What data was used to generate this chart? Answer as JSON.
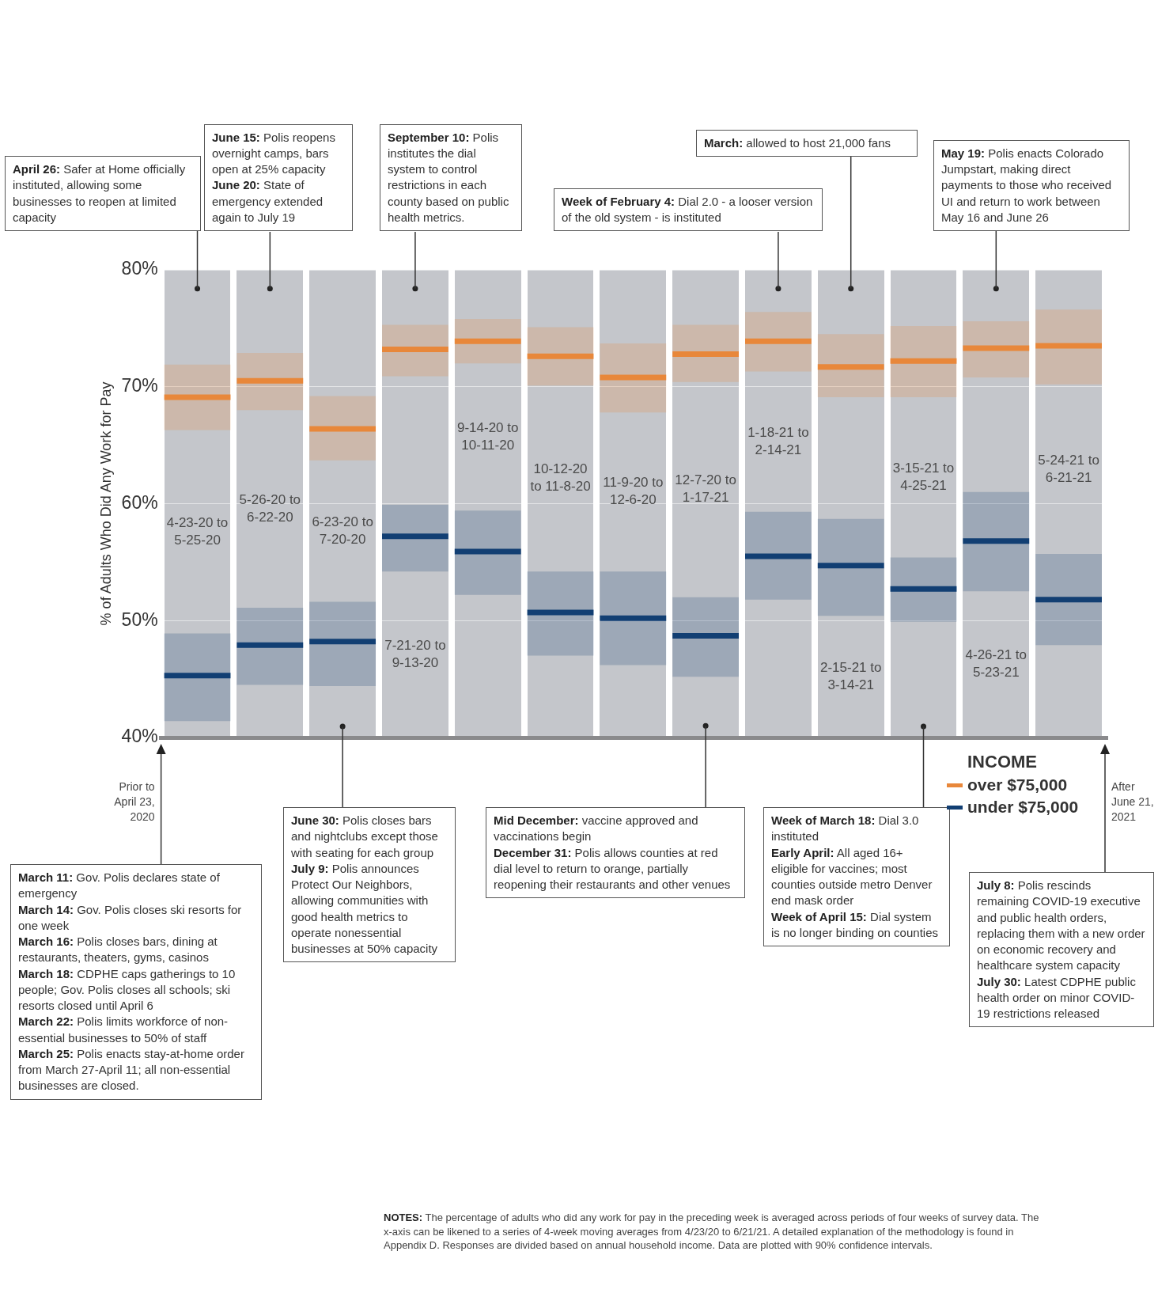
{
  "chart_data": {
    "type": "box",
    "ylabel": "% of Adults Who Did Any Work for Pay",
    "legend_title": "INCOME",
    "legend": "bottom right",
    "grid": true,
    "categories": [
      "4-23-20 to 5-25-20",
      "5-26-20 to 6-22-20",
      "6-23-20 to 7-20-20",
      "7-21-20 to 9-13-20",
      "9-14-20 to 10-11-20",
      "10-12-20 to 11-8-20",
      "11-9-20 to 12-6-20",
      "12-7-20 to 1-17-21",
      "1-18-21 to 2-14-21",
      "2-15-21 to 3-14-21",
      "3-15-21 to 4-25-21",
      "4-26-21 to 5-23-21",
      "5-24-21 to 6-21-21"
    ],
    "ylim": [
      40,
      80
    ],
    "yticks": [
      {
        "value": 40,
        "label": "40%"
      },
      {
        "value": 50,
        "label": "50%"
      },
      {
        "value": 60,
        "label": "60%"
      },
      {
        "value": 70,
        "label": "70%"
      },
      {
        "value": 80,
        "label": "80%"
      }
    ],
    "series": [
      {
        "name": "over $75,000",
        "color": "#e8873a",
        "boxes": [
          {
            "low": 66.3,
            "q1": 66.3,
            "median": 69.1,
            "q3": 71.9,
            "high": 71.9
          },
          {
            "low": 68.0,
            "q1": 68.0,
            "median": 70.5,
            "q3": 72.9,
            "high": 72.9
          },
          {
            "low": 63.7,
            "q1": 63.7,
            "median": 66.4,
            "q3": 69.2,
            "high": 69.2
          },
          {
            "low": 70.9,
            "q1": 70.9,
            "median": 73.2,
            "q3": 75.3,
            "high": 75.3
          },
          {
            "low": 72.0,
            "q1": 72.0,
            "median": 73.9,
            "q3": 75.8,
            "high": 75.8
          },
          {
            "low": 70.1,
            "q1": 70.1,
            "median": 72.6,
            "q3": 75.1,
            "high": 75.1
          },
          {
            "low": 67.8,
            "q1": 67.8,
            "median": 70.8,
            "q3": 73.7,
            "high": 73.7
          },
          {
            "low": 70.4,
            "q1": 70.4,
            "median": 72.8,
            "q3": 75.3,
            "high": 75.3
          },
          {
            "low": 71.3,
            "q1": 71.3,
            "median": 73.9,
            "q3": 76.4,
            "high": 76.4
          },
          {
            "low": 69.1,
            "q1": 69.1,
            "median": 71.7,
            "q3": 74.5,
            "high": 74.5
          },
          {
            "low": 69.1,
            "q1": 69.1,
            "median": 72.2,
            "q3": 75.2,
            "high": 75.2
          },
          {
            "low": 70.8,
            "q1": 70.8,
            "median": 73.3,
            "q3": 75.6,
            "high": 75.6
          },
          {
            "low": 70.2,
            "q1": 70.2,
            "median": 73.5,
            "q3": 76.6,
            "high": 76.6
          }
        ]
      },
      {
        "name": "under $75,000",
        "color": "#123f73",
        "boxes": [
          {
            "low": 41.4,
            "q1": 41.4,
            "median": 45.3,
            "q3": 48.9,
            "high": 48.9
          },
          {
            "low": 44.5,
            "q1": 44.5,
            "median": 47.9,
            "q3": 51.1,
            "high": 51.1
          },
          {
            "low": 44.4,
            "q1": 44.4,
            "median": 48.2,
            "q3": 51.6,
            "high": 51.6
          },
          {
            "low": 54.2,
            "q1": 54.2,
            "median": 57.2,
            "q3": 59.9,
            "high": 59.9
          },
          {
            "low": 52.2,
            "q1": 52.2,
            "median": 55.9,
            "q3": 59.4,
            "high": 59.4
          },
          {
            "low": 47.0,
            "q1": 47.0,
            "median": 50.7,
            "q3": 54.2,
            "high": 54.2
          },
          {
            "low": 46.2,
            "q1": 46.2,
            "median": 50.2,
            "q3": 54.2,
            "high": 54.2
          },
          {
            "low": 45.2,
            "q1": 45.2,
            "median": 48.7,
            "q3": 52.0,
            "high": 52.0
          },
          {
            "low": 51.8,
            "q1": 51.8,
            "median": 55.5,
            "q3": 59.3,
            "high": 59.3
          },
          {
            "low": 50.4,
            "q1": 50.4,
            "median": 54.7,
            "q3": 58.7,
            "high": 58.7
          },
          {
            "low": 49.9,
            "q1": 49.9,
            "median": 52.7,
            "q3": 55.4,
            "high": 55.4
          },
          {
            "low": 52.5,
            "q1": 52.5,
            "median": 56.8,
            "q3": 61.0,
            "high": 61.0
          },
          {
            "low": 47.9,
            "q1": 47.9,
            "median": 51.8,
            "q3": 55.7,
            "high": 55.7
          }
        ]
      }
    ],
    "annotations": [
      {
        "text": "April 26: Safer at Home officially instituted, allowing some businesses to reopen at limited capacity",
        "x": "4-23-20 to 5-25-20",
        "y": 78.4
      },
      {
        "text": "June 15: Polis reopens overnight camps, bars open at 25% capacity\nJune 20: State of emergency extended again to July 19",
        "x": "5-26-20 to 6-22-20",
        "y": 78.4
      },
      {
        "text": "September 10: Polis institutes the dial system to control restrictions in each county based on public health metrics.",
        "x": "7-21-20 to 9-13-20",
        "y": 78.4
      },
      {
        "text": "Week of February 4: Dial 2.0 - a looser version of the old system - is instituted",
        "x": "1-18-21 to 2-14-21",
        "y": 78.4
      },
      {
        "text": "March: allowed to host 21,000 fans",
        "x": "2-15-21 to 3-14-21",
        "y": 78.4
      },
      {
        "text": "May 19: Polis enacts Colorado Jumpstart, making direct payments to those who received UI and return to work between May 16 and June 26",
        "x": "4-26-21 to 5-23-21",
        "y": 78.4
      },
      "Prior to April 23, 2020",
      "March 11: Gov. Polis declares state of emergency\nMarch 14: Gov. Polis closes ski resorts for one week\nMarch 16: Polis closes bars, dining at restaurants, theaters, gyms, casinos\nMarch 18: CDPHE caps gatherings to 10 people; Gov. Polis closes all schools; ski resorts closed until April 6\nMarch 22: Polis limits workforce of non-essential businesses to 50% of staff\nMarch 25: Polis enacts stay-at-home order from March 27-April 11; all non-essential businesses are closed.",
      "June 30: Polis closes bars and nightclubs except those with seating for each group\nJuly 9: Polis announces Protect Our Neighbors, allowing communities with good health metrics to operate nonessential businesses at 50% capacity",
      {
        "text": "Mid December: vaccine approved and vaccinations begin\nDecember 31: Polis allows counties at red dial level to return to orange, partially reopening their restaurants and other venues",
        "x": "12-7-20 to 1-17-21",
        "y": 41
      },
      "Week of March 18: Dial 3.0 instituted\nEarly April: All aged 16+ eligible for vaccines; most counties outside metro Denver end mask order\nWeek of April 15: Dial system is no longer binding on counties",
      "After June 21, 2021",
      "July 8: Polis rescinds remaining COVID-19 executive and public health orders, replacing them with a new order on economic recovery and healthcare system capacity\nJuly 30: Latest CDPHE public health order on minor COVID-19 restrictions released",
      "NOTES: The percentage of adults who did any work for pay in the preceding week is averaged across periods of four weeks of survey data. The x-axis can be likened to a series of 4-week moving averages from 4/23/20 to 6/21/21. A detailed explanation of the methodology is found in Appendix D. Responses are divided based on annual household income. Data are plotted with 90% confidence intervals."
    ]
  }
}
